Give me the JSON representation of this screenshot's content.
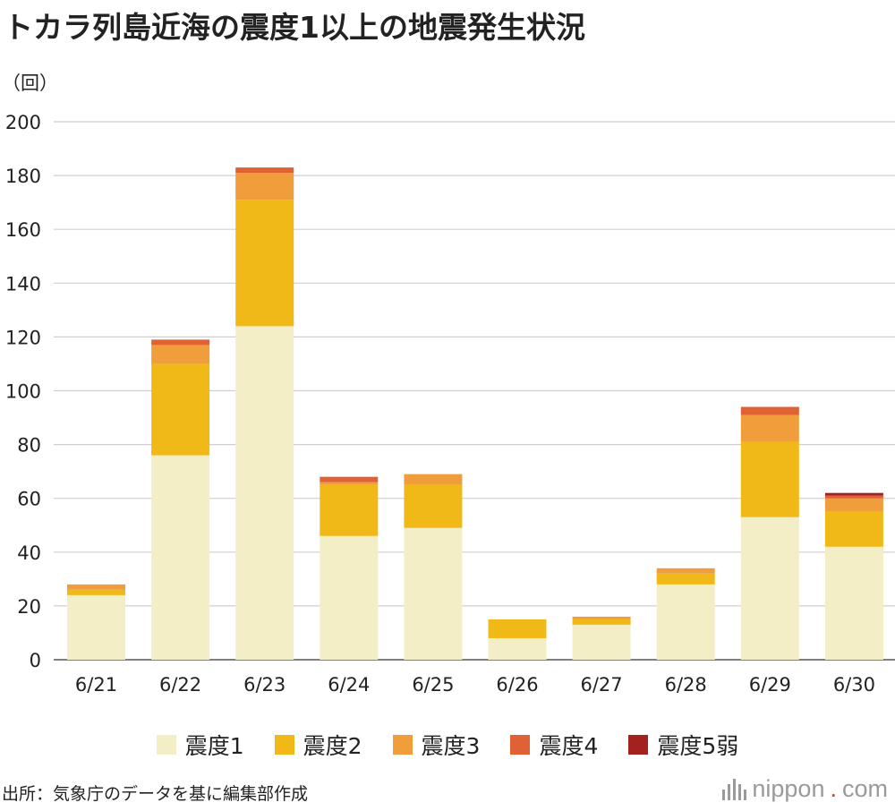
{
  "title": "トカラ列島近海の震度1以上の地震発生状況",
  "unit_label": "（回）",
  "source": "出所：気象庁のデータを基に編集部作成",
  "logo": {
    "name": "nippon",
    "dot": ".",
    "tld": "com"
  },
  "chart_data": {
    "type": "bar",
    "stacked": true,
    "ylabel": "（回）",
    "ylim": [
      0,
      200
    ],
    "yticks": [
      0,
      20,
      40,
      60,
      80,
      100,
      120,
      140,
      160,
      180,
      200
    ],
    "grid": true,
    "legend_position": "bottom",
    "categories": [
      "6/21",
      "6/22",
      "6/23",
      "6/24",
      "6/25",
      "6/26",
      "6/27",
      "6/28",
      "6/29",
      "6/30"
    ],
    "series": [
      {
        "name": "震度1",
        "color": "#f3eec6",
        "values": [
          24,
          76,
          124,
          46,
          49,
          8,
          13,
          28,
          53,
          42
        ]
      },
      {
        "name": "震度2",
        "color": "#f0b917",
        "values": [
          2,
          34,
          47,
          19,
          16,
          7,
          2,
          4,
          28,
          13
        ]
      },
      {
        "name": "震度3",
        "color": "#ef9e3b",
        "values": [
          2,
          7,
          10,
          1,
          4,
          0,
          1,
          2,
          10,
          5
        ]
      },
      {
        "name": "震度4",
        "color": "#df6134",
        "values": [
          0,
          2,
          2,
          2,
          0,
          0,
          0,
          0,
          3,
          1
        ]
      },
      {
        "name": "震度5弱",
        "color": "#a3221f",
        "values": [
          0,
          0,
          0,
          0,
          0,
          0,
          0,
          0,
          0,
          1
        ]
      }
    ]
  }
}
